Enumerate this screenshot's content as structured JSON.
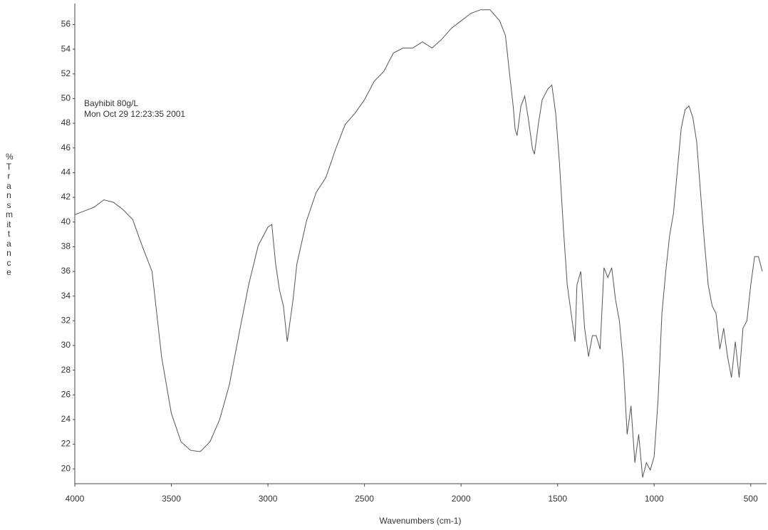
{
  "chart_data": {
    "type": "line",
    "annotations": [
      "Bayhibit 80g/L",
      "Mon Oct 29 12:23:35 2001"
    ],
    "xlabel": "Wavenumbers (cm-1)",
    "ylabel": "%Transmittance",
    "xlim": [
      4000,
      418
    ],
    "ylim": [
      18.8,
      57.7
    ],
    "xticks": [
      4000,
      3500,
      3000,
      2500,
      2000,
      1500,
      1000,
      500
    ],
    "yticks": [
      20,
      22,
      24,
      26,
      28,
      30,
      32,
      34,
      36,
      38,
      40,
      42,
      44,
      46,
      48,
      50,
      52,
      54,
      56
    ],
    "grid": false,
    "series": [
      {
        "color": "#555555",
        "x": [
          4000,
          3900,
          3850,
          3800,
          3750,
          3700,
          3650,
          3600,
          3550,
          3500,
          3450,
          3400,
          3350,
          3300,
          3250,
          3200,
          3150,
          3100,
          3050,
          3000,
          2980,
          2960,
          2940,
          2920,
          2900,
          2870,
          2850,
          2800,
          2750,
          2700,
          2650,
          2600,
          2550,
          2500,
          2450,
          2400,
          2350,
          2300,
          2250,
          2200,
          2150,
          2100,
          2050,
          2000,
          1950,
          1900,
          1850,
          1800,
          1770,
          1750,
          1730,
          1720,
          1710,
          1690,
          1670,
          1650,
          1630,
          1620,
          1600,
          1580,
          1550,
          1530,
          1510,
          1490,
          1470,
          1450,
          1430,
          1410,
          1400,
          1380,
          1360,
          1340,
          1320,
          1300,
          1280,
          1260,
          1240,
          1220,
          1200,
          1180,
          1160,
          1140,
          1120,
          1100,
          1080,
          1060,
          1040,
          1020,
          1000,
          980,
          960,
          940,
          920,
          900,
          880,
          860,
          840,
          820,
          800,
          780,
          760,
          740,
          720,
          700,
          680,
          660,
          640,
          620,
          600,
          580,
          560,
          540,
          520,
          500,
          480,
          460,
          440
        ],
        "values": [
          40.6,
          41.2,
          41.8,
          41.6,
          41.0,
          40.2,
          38,
          36,
          29,
          24.5,
          22.2,
          21.5,
          21.4,
          22.2,
          24,
          26.8,
          30.9,
          34.9,
          38.1,
          39.6,
          39.8,
          36.6,
          34.5,
          33.2,
          30.3,
          33.7,
          36.6,
          40.1,
          42.4,
          43.6,
          45.9,
          47.9,
          48.8,
          49.9,
          51.4,
          52.2,
          53.7,
          54.1,
          54.1,
          54.6,
          54.1,
          54.8,
          55.7,
          56.3,
          56.9,
          57.2,
          57.2,
          56.3,
          55.1,
          52.2,
          49.4,
          47.5,
          47.0,
          49.4,
          50.2,
          48.2,
          45.9,
          45.5,
          47.9,
          49.9,
          50.8,
          51.1,
          48.8,
          44.7,
          39.5,
          34.9,
          32.6,
          30.3,
          34.9,
          36.0,
          31.4,
          29.1,
          30.8,
          30.8,
          29.7,
          36.3,
          35.5,
          36.3,
          33.7,
          32,
          28.5,
          22.8,
          25.1,
          20.5,
          22.8,
          19.3,
          20.5,
          19.9,
          21.0,
          25.6,
          32.6,
          36.0,
          38.9,
          40.7,
          44.2,
          47.6,
          49.1,
          49.4,
          48.5,
          46.5,
          42.4,
          38.4,
          34.9,
          33.2,
          32.6,
          29.7,
          31.4,
          29.1,
          27.4,
          30.3,
          27.4,
          31.4,
          32,
          34.9,
          37.2,
          37.2,
          36
        ]
      }
    ]
  }
}
